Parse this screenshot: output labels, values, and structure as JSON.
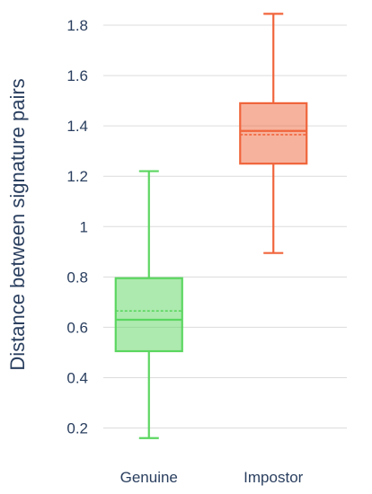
{
  "chart_data": {
    "type": "box",
    "ylabel": "Distance between signature pairs",
    "xlabel": "",
    "ylim": [
      0.14,
      1.88
    ],
    "yticks": [
      0.2,
      0.4,
      0.6,
      0.8,
      1,
      1.2,
      1.4,
      1.6,
      1.8
    ],
    "ytick_labels": [
      "0.2",
      "0.4",
      "0.6",
      "0.8",
      "1",
      "1.2",
      "1.4",
      "1.6",
      "1.8"
    ],
    "grid": true,
    "categories": [
      "Genuine",
      "Impostor"
    ],
    "series": [
      {
        "category": "Genuine",
        "color": "#5bd660",
        "min": 0.16,
        "q1": 0.505,
        "median": 0.63,
        "mean": 0.665,
        "q3": 0.795,
        "max": 1.22
      },
      {
        "category": "Impostor",
        "color": "#f0653c",
        "min": 0.895,
        "q1": 1.25,
        "median": 1.38,
        "mean": 1.365,
        "q3": 1.49,
        "max": 1.845
      }
    ]
  }
}
